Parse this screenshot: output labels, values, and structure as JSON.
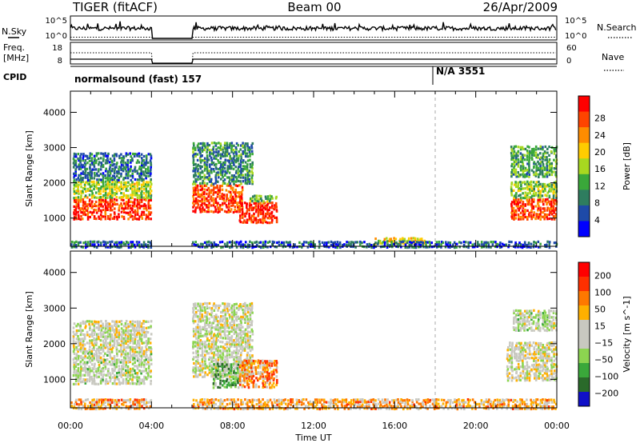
{
  "header": {
    "radar": "TIGER (fitACF)",
    "beam": "Beam 00",
    "date": "26/Apr/2009"
  },
  "top_panels": {
    "nsky_label": "N.Sky",
    "nsky_ticks": [
      "10^5",
      "10^0"
    ],
    "nsearch_label": "N.Search",
    "nsearch_ticks": [
      "10^5",
      "10^0"
    ],
    "freq_label_1": "Freq.",
    "freq_label_2": "[MHz]",
    "freq_ticks": [
      "18",
      "8"
    ],
    "nave_label": "Nave",
    "nave_ticks": [
      "60",
      "0"
    ],
    "cpid_label": "CPID",
    "cpid_segments": [
      "normalsound (fast) 157",
      "N/A 3551"
    ]
  },
  "chart_data": [
    {
      "type": "heatmap",
      "name": "power",
      "ylabel": "Slant Range [km]",
      "xlabel": "Time UT",
      "xticks": [
        "00:00",
        "04:00",
        "08:00",
        "12:00",
        "16:00",
        "20:00",
        "00:00"
      ],
      "yticks": [
        "1000",
        "2000",
        "3000",
        "4000"
      ],
      "ylim": [
        200,
        4600
      ],
      "xlim_hours": [
        0,
        24
      ],
      "colorbar_label": "Power [dB]",
      "colorbar_ticks": [
        "4",
        "8",
        "12",
        "16",
        "20",
        "24",
        "28"
      ],
      "colors": [
        "#0000ff",
        "#1e4aa8",
        "#2e7d5f",
        "#3aa83a",
        "#a8d820",
        "#ffcc00",
        "#ff8c00",
        "#ff4400",
        "#ff0000"
      ],
      "data_gap_hours": [
        4.0,
        6.0
      ],
      "regions": [
        {
          "t": [
            0.1,
            4.0
          ],
          "range": [
            1000,
            1600
          ],
          "level": 0.9
        },
        {
          "t": [
            0.1,
            4.0
          ],
          "range": [
            1600,
            2100
          ],
          "level": 0.5
        },
        {
          "t": [
            0.1,
            4.0
          ],
          "range": [
            2100,
            2900
          ],
          "level": 0.25
        },
        {
          "t": [
            6.0,
            8.5
          ],
          "range": [
            1200,
            2000
          ],
          "level": 0.85
        },
        {
          "t": [
            6.0,
            9.0
          ],
          "range": [
            2000,
            3200
          ],
          "level": 0.3
        },
        {
          "t": [
            8.3,
            10.2
          ],
          "range": [
            900,
            1500
          ],
          "level": 0.9
        },
        {
          "t": [
            8.8,
            10.2
          ],
          "range": [
            1500,
            1700
          ],
          "level": 0.4
        },
        {
          "t": [
            15.0,
            17.5
          ],
          "range": [
            300,
            500
          ],
          "level": 0.6
        },
        {
          "t": [
            21.7,
            24.0
          ],
          "range": [
            1000,
            1600
          ],
          "level": 0.85
        },
        {
          "t": [
            21.7,
            24.0
          ],
          "range": [
            1600,
            2100
          ],
          "level": 0.45
        },
        {
          "t": [
            21.7,
            24.0
          ],
          "range": [
            2200,
            3100
          ],
          "level": 0.35
        },
        {
          "t": [
            0.0,
            24.0
          ],
          "range": [
            200,
            400
          ],
          "level": 0.2
        }
      ]
    },
    {
      "type": "heatmap",
      "name": "velocity",
      "ylabel": "Slant Range [km]",
      "xlabel": "Time UT",
      "xticks": [
        "00:00",
        "04:00",
        "08:00",
        "12:00",
        "16:00",
        "20:00",
        "00:00"
      ],
      "yticks": [
        "1000",
        "2000",
        "3000",
        "4000"
      ],
      "ylim": [
        200,
        4600
      ],
      "xlim_hours": [
        0,
        24
      ],
      "colorbar_label": "Velocity [m s^-1]",
      "colorbar_ticks": [
        "200",
        "100",
        "50",
        "15",
        "−15",
        "−50",
        "−100",
        "−200"
      ],
      "colors": [
        "#1010c8",
        "#2a6a2a",
        "#3aa83a",
        "#8cd450",
        "#c8c8c0",
        "#c8c8c0",
        "#ffb000",
        "#ff7800",
        "#ff3000",
        "#ff0000"
      ],
      "data_gap_hours": [
        4.0,
        6.0
      ],
      "regions": [
        {
          "t": [
            0.1,
            4.0
          ],
          "range": [
            900,
            1800
          ],
          "level": 0.45
        },
        {
          "t": [
            0.1,
            4.0
          ],
          "range": [
            1800,
            2700
          ],
          "level": 0.5
        },
        {
          "t": [
            6.0,
            9.0
          ],
          "range": [
            1100,
            3200
          ],
          "level": 0.48
        },
        {
          "t": [
            7.0,
            8.3
          ],
          "range": [
            800,
            1500
          ],
          "level": 0.3
        },
        {
          "t": [
            8.3,
            10.2
          ],
          "range": [
            800,
            1600
          ],
          "level": 0.7
        },
        {
          "t": [
            21.5,
            24.0
          ],
          "range": [
            1000,
            2100
          ],
          "level": 0.5
        },
        {
          "t": [
            21.8,
            24.0
          ],
          "range": [
            2400,
            3000
          ],
          "level": 0.45
        },
        {
          "t": [
            0.0,
            24.0
          ],
          "range": [
            200,
            500
          ],
          "level": 0.65
        }
      ]
    }
  ]
}
